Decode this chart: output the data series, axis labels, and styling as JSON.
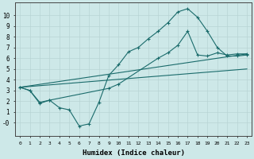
{
  "xlabel": "Humidex (Indice chaleur)",
  "bg_color": "#cde8e8",
  "line_color": "#1a6b6b",
  "grid_color": "#b8d4d4",
  "xlim": [
    -0.5,
    23.5
  ],
  "ylim": [
    -1.2,
    11.2
  ],
  "xticks": [
    0,
    1,
    2,
    3,
    4,
    5,
    6,
    7,
    8,
    9,
    10,
    11,
    12,
    13,
    14,
    15,
    16,
    17,
    18,
    19,
    20,
    21,
    22,
    23
  ],
  "yticks": [
    0,
    1,
    2,
    3,
    4,
    5,
    6,
    7,
    8,
    9,
    10
  ],
  "ytick_labels": [
    "-0",
    "1",
    "2",
    "3",
    "4",
    "5",
    "6",
    "7",
    "8",
    "9",
    "10"
  ],
  "line1_x": [
    0,
    1,
    2,
    3,
    4,
    5,
    6,
    7,
    8,
    9,
    10,
    11,
    12,
    13,
    14,
    15,
    16,
    17,
    18,
    19,
    20,
    21,
    22,
    23
  ],
  "line1_y": [
    3.3,
    3.0,
    1.8,
    2.1,
    1.4,
    1.2,
    -0.3,
    -0.1,
    1.9,
    4.4,
    5.4,
    6.6,
    7.0,
    7.8,
    8.5,
    9.3,
    10.3,
    10.6,
    9.8,
    8.5,
    7.0,
    6.2,
    6.2,
    6.3
  ],
  "line2_x": [
    0,
    1,
    2,
    3,
    9,
    10,
    14,
    15,
    16,
    17,
    18,
    19,
    20,
    21,
    22,
    23
  ],
  "line2_y": [
    3.3,
    3.0,
    1.9,
    2.1,
    3.2,
    3.6,
    6.0,
    6.5,
    7.2,
    8.5,
    6.3,
    6.2,
    6.5,
    6.3,
    6.4,
    6.4
  ],
  "line3_x": [
    0,
    23
  ],
  "line3_y": [
    3.3,
    6.4
  ],
  "line4_x": [
    0,
    23
  ],
  "line4_y": [
    3.3,
    5.0
  ]
}
